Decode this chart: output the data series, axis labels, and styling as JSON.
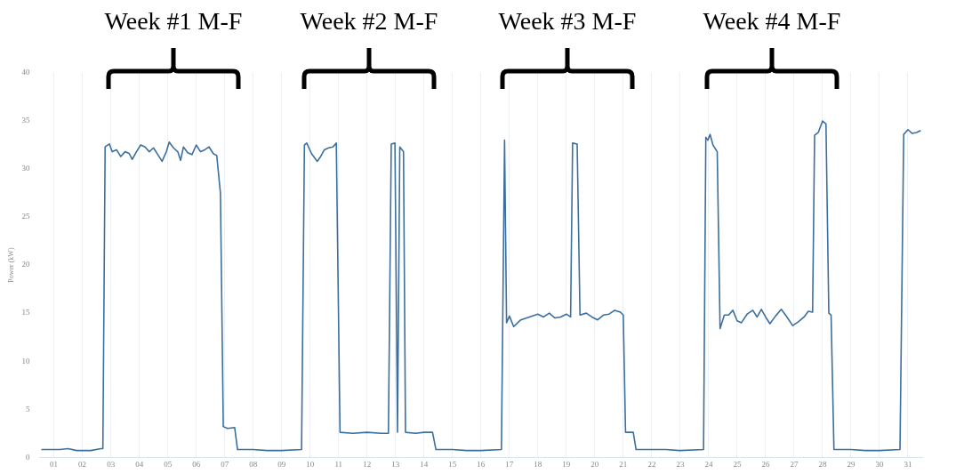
{
  "chart_data": {
    "type": "line",
    "ylabel": "Power (kW)",
    "annotations": [
      "Week #1 M-F",
      "Week #2 M-F",
      "Week #3 M-F",
      "Week #4 M-F"
    ],
    "xlim": [
      0.5,
      31.5
    ],
    "xticks": [
      {
        "value": 1,
        "label": "01"
      },
      {
        "value": 2,
        "label": "02"
      },
      {
        "value": 3,
        "label": "03"
      },
      {
        "value": 4,
        "label": "04"
      },
      {
        "value": 5,
        "label": "05"
      },
      {
        "value": 6,
        "label": "06"
      },
      {
        "value": 7,
        "label": "07"
      },
      {
        "value": 8,
        "label": "08"
      },
      {
        "value": 9,
        "label": "09"
      },
      10,
      11,
      12,
      13,
      14,
      15,
      16,
      17,
      18,
      19,
      20,
      21,
      22,
      23,
      24,
      25,
      26,
      27,
      28,
      29,
      30,
      31
    ],
    "ylim": [
      0,
      40
    ],
    "yticks": [
      0,
      5,
      10,
      15,
      20,
      25,
      30,
      35,
      40
    ],
    "grid": "x",
    "legend": false,
    "marker": "none",
    "line_style": "solid",
    "series": [
      {
        "color": "#3b6fa0",
        "x": [
          0.56,
          1.2,
          1.5,
          1.8,
          2.3,
          2.65,
          2.72,
          2.8,
          2.95,
          3.05,
          3.2,
          3.35,
          3.5,
          3.65,
          3.75,
          3.9,
          4.05,
          4.2,
          4.35,
          4.5,
          4.65,
          4.8,
          4.95,
          5.05,
          5.2,
          5.35,
          5.45,
          5.55,
          5.7,
          5.85,
          6.0,
          6.15,
          6.3,
          6.45,
          6.6,
          6.72,
          6.85,
          6.95,
          7.1,
          7.35,
          7.45,
          8.0,
          8.5,
          9.0,
          9.7,
          9.8,
          9.88,
          10.05,
          10.25,
          10.35,
          10.5,
          10.65,
          10.8,
          10.92,
          11.05,
          11.5,
          12.0,
          12.5,
          12.75,
          12.85,
          12.98,
          13.07,
          13.15,
          13.28,
          13.35,
          13.7,
          14.0,
          14.3,
          14.42,
          15.0,
          15.5,
          16.0,
          16.72,
          16.83,
          16.9,
          17.0,
          17.15,
          17.4,
          17.7,
          18.0,
          18.2,
          18.4,
          18.6,
          18.8,
          19.0,
          19.15,
          19.22,
          19.38,
          19.48,
          19.7,
          19.9,
          20.1,
          20.3,
          20.5,
          20.7,
          20.9,
          21.0,
          21.08,
          21.35,
          21.45,
          22.0,
          22.5,
          23.0,
          23.82,
          23.9,
          23.97,
          24.05,
          24.15,
          24.3,
          24.4,
          24.55,
          24.7,
          24.85,
          25.0,
          25.15,
          25.35,
          25.55,
          25.7,
          25.85,
          26.0,
          26.15,
          26.35,
          26.55,
          26.75,
          26.95,
          27.15,
          27.35,
          27.5,
          27.65,
          27.72,
          27.85,
          28.0,
          28.12,
          28.22,
          28.3,
          28.4,
          29.0,
          29.5,
          30.0,
          30.72,
          30.85,
          31.0,
          31.15,
          31.3,
          31.45
        ],
        "values": [
          0.8,
          0.8,
          0.9,
          0.7,
          0.7,
          0.9,
          0.9,
          32.3,
          32.6,
          31.8,
          32.0,
          31.3,
          31.8,
          31.6,
          31.0,
          31.8,
          32.5,
          32.3,
          31.8,
          32.2,
          31.5,
          30.8,
          31.8,
          32.8,
          32.2,
          31.8,
          30.9,
          32.3,
          31.7,
          31.5,
          32.5,
          31.8,
          32.0,
          32.3,
          31.6,
          31.4,
          27.5,
          3.2,
          3.0,
          3.1,
          0.8,
          0.8,
          0.7,
          0.7,
          0.8,
          32.5,
          32.7,
          31.6,
          30.8,
          31.2,
          32.0,
          32.2,
          32.3,
          32.7,
          2.6,
          2.5,
          2.6,
          2.5,
          2.5,
          32.6,
          32.7,
          2.6,
          32.3,
          31.8,
          2.6,
          2.5,
          2.6,
          2.6,
          0.8,
          0.8,
          0.7,
          0.7,
          0.8,
          33.0,
          14.0,
          14.7,
          13.6,
          14.3,
          14.6,
          14.9,
          14.6,
          15.0,
          14.5,
          14.6,
          14.9,
          14.6,
          32.7,
          32.6,
          14.8,
          15.0,
          14.6,
          14.3,
          14.8,
          14.9,
          15.3,
          15.1,
          14.8,
          2.6,
          2.6,
          0.8,
          0.8,
          0.8,
          0.7,
          0.8,
          33.3,
          33.0,
          33.6,
          32.5,
          31.8,
          13.4,
          14.8,
          14.8,
          15.3,
          14.2,
          14.0,
          14.9,
          15.3,
          14.6,
          15.4,
          14.6,
          13.9,
          14.7,
          15.4,
          14.6,
          13.7,
          14.1,
          14.6,
          15.2,
          15.1,
          33.5,
          33.8,
          35.0,
          34.7,
          15.0,
          14.8,
          0.8,
          0.8,
          0.7,
          0.7,
          0.8,
          33.6,
          34.1,
          33.7,
          33.8,
          34.0
        ]
      }
    ]
  }
}
